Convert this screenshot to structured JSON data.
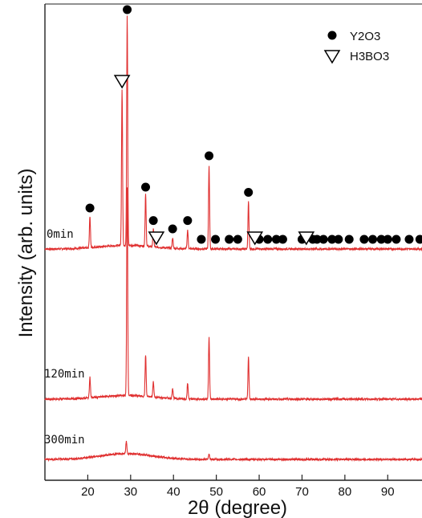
{
  "chart_data": {
    "type": "line",
    "xlabel": "2θ (degree)",
    "ylabel": "Intensity (arb. units)",
    "xlim": [
      10,
      98
    ],
    "xticks": [
      20,
      30,
      40,
      50,
      60,
      70,
      80,
      90
    ],
    "y_ticks_shown": false,
    "grid": false,
    "line_color": "#e03030",
    "legend": {
      "placement": "top-right",
      "entries": [
        {
          "name": "Y2O3",
          "marker": "filled-circle"
        },
        {
          "name": "H3BO3",
          "marker": "open-down-triangle"
        }
      ]
    },
    "series": [
      {
        "name": "0min",
        "baseline": 1.2,
        "peaks": [
          {
            "x": 20.5,
            "height": 3
          },
          {
            "x": 28.0,
            "height": 15
          },
          {
            "x": 29.2,
            "height": 22
          },
          {
            "x": 33.5,
            "height": 5
          },
          {
            "x": 35.3,
            "height": 1.8
          },
          {
            "x": 39.8,
            "height": 1
          },
          {
            "x": 43.3,
            "height": 1.8
          },
          {
            "x": 48.3,
            "height": 8
          },
          {
            "x": 57.5,
            "height": 4.5
          }
        ],
        "markers_y2o3": [
          20.5,
          29.2,
          33.5,
          35.3,
          39.8,
          43.3,
          46.5,
          48.3,
          49.8,
          53.0,
          55.0,
          57.5,
          60.0,
          62.0,
          64.0,
          65.5,
          70.0,
          72.5,
          73.5,
          75.0,
          77.0,
          78.5,
          81.0,
          84.5,
          86.5,
          88.5,
          90.0,
          92.0,
          95.0,
          97.5
        ],
        "markers_h3bo3": [
          28.0,
          36.0,
          59.0,
          71.0
        ]
      },
      {
        "name": "120min",
        "baseline": 0.5,
        "peaks": [
          {
            "x": 20.5,
            "height": 2
          },
          {
            "x": 29.2,
            "height": 20
          },
          {
            "x": 33.5,
            "height": 4
          },
          {
            "x": 35.3,
            "height": 1.5
          },
          {
            "x": 39.8,
            "height": 1
          },
          {
            "x": 43.3,
            "height": 1.5
          },
          {
            "x": 48.3,
            "height": 6
          },
          {
            "x": 57.5,
            "height": 4
          }
        ]
      },
      {
        "name": "300min",
        "baseline": 0.3,
        "peaks": [
          {
            "x": 29.0,
            "height": 1.2
          },
          {
            "x": 48.3,
            "height": 0.5
          }
        ]
      }
    ]
  }
}
